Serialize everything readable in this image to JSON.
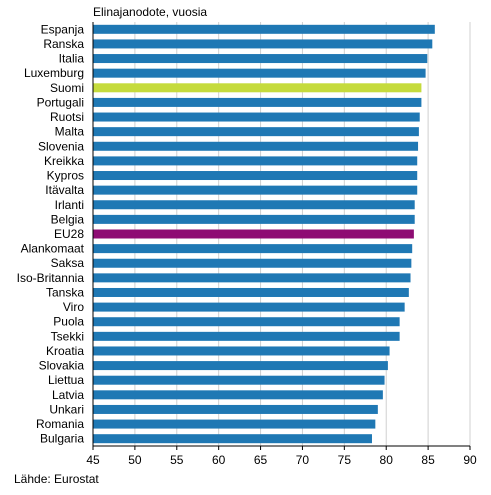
{
  "chart_data": {
    "type": "bar",
    "orientation": "horizontal",
    "title": "Elinajanodote, vuosia",
    "source": "Lähde: Eurostat",
    "categories": [
      "Espanja",
      "Ranska",
      "Italia",
      "Luxemburg",
      "Suomi",
      "Portugali",
      "Ruotsi",
      "Malta",
      "Slovenia",
      "Kreikka",
      "Kypros",
      "Itävalta",
      "Irlanti",
      "Belgia",
      "EU28",
      "Alankomaat",
      "Saksa",
      "Iso-Britannia",
      "Tanska",
      "Viro",
      "Puola",
      "Tsekki",
      "Kroatia",
      "Slovakia",
      "Liettua",
      "Latvia",
      "Unkari",
      "Romania",
      "Bulgaria"
    ],
    "values": [
      85.8,
      85.5,
      84.9,
      84.7,
      84.2,
      84.2,
      84.0,
      83.9,
      83.8,
      83.7,
      83.7,
      83.7,
      83.4,
      83.4,
      83.3,
      83.1,
      83.0,
      82.9,
      82.7,
      82.2,
      81.6,
      81.6,
      80.4,
      80.2,
      79.8,
      79.6,
      79.0,
      78.7,
      78.3
    ],
    "colors": {
      "default": "#1f78b4",
      "Suomi": "#c5db3c",
      "EU28": "#8e0c73"
    },
    "xlim": [
      45,
      90
    ],
    "xticks": [
      "45",
      "50",
      "55",
      "60",
      "65",
      "70",
      "75",
      "80",
      "85",
      "90"
    ],
    "grid": true
  }
}
